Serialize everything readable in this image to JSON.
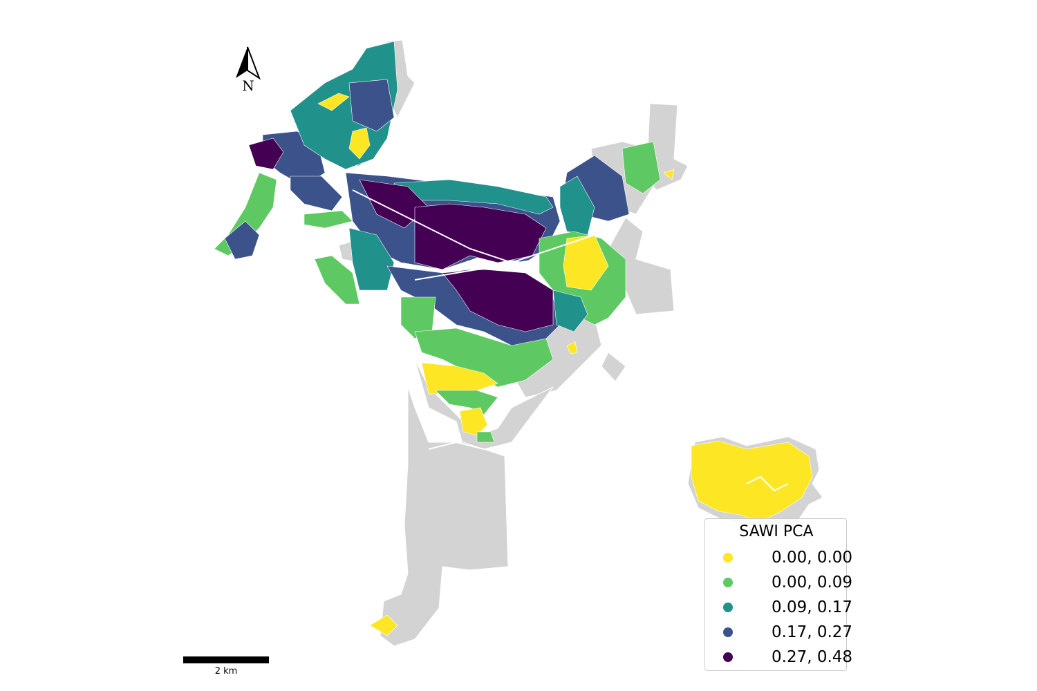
{
  "legend": {
    "title": "SAWI PCA",
    "items": [
      {
        "label": "0.00, 0.00",
        "color": "#fde725"
      },
      {
        "label": "0.00, 0.09",
        "color": "#5ec962"
      },
      {
        "label": "0.09, 0.17",
        "color": "#21918c"
      },
      {
        "label": "0.17, 0.27",
        "color": "#3b528b"
      },
      {
        "label": "0.27, 0.48",
        "color": "#440154"
      }
    ]
  },
  "scale_bar": {
    "label": "2 km"
  },
  "north_arrow": {
    "label": "N"
  },
  "no_data_color": "#d3d3d3"
}
